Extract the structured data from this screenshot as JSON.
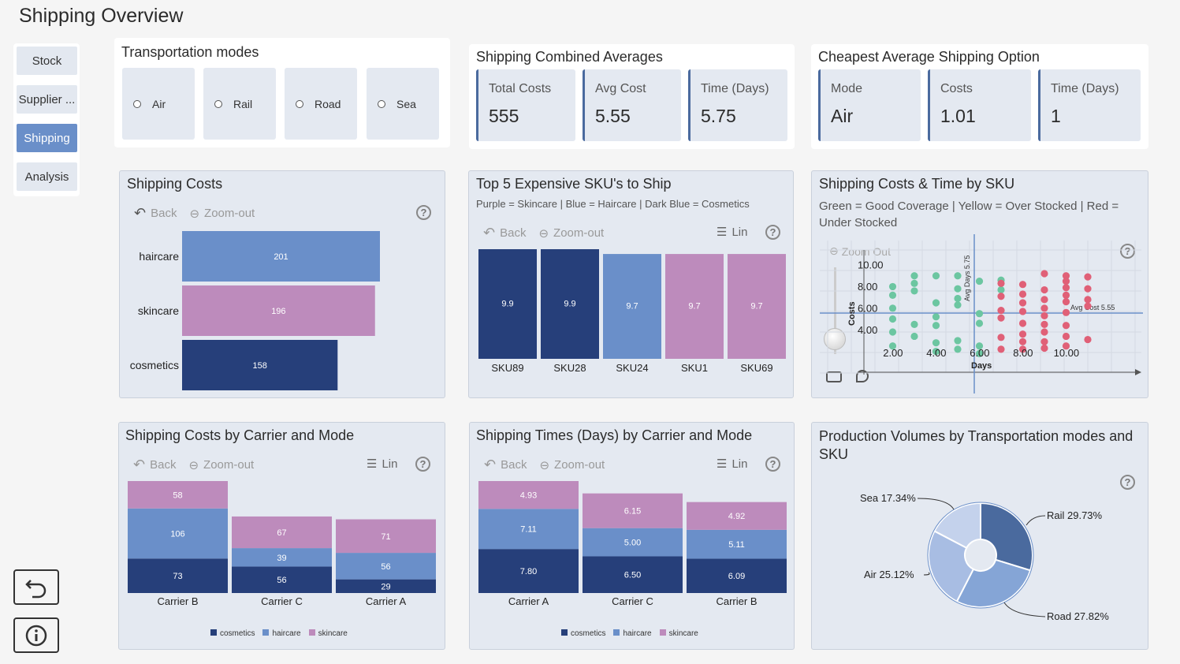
{
  "page_title": "Shipping Overview",
  "nav": {
    "items": [
      {
        "label": "Stock",
        "active": false
      },
      {
        "label": "Supplier ...",
        "active": false
      },
      {
        "label": "Shipping",
        "active": true
      },
      {
        "label": "Analysis",
        "active": false
      }
    ]
  },
  "transport": {
    "title": "Transportation modes",
    "modes": [
      "Air",
      "Rail",
      "Road",
      "Sea"
    ]
  },
  "combined": {
    "title": "Shipping Combined Averages",
    "kpis": [
      {
        "label": "Total Costs",
        "value": "555"
      },
      {
        "label": "Avg Cost",
        "value": "5.55"
      },
      {
        "label": "Time (Days)",
        "value": "5.75"
      }
    ]
  },
  "cheapest": {
    "title": "Cheapest Average Shipping Option",
    "kpis": [
      {
        "label": "Mode",
        "value": "Air"
      },
      {
        "label": "Costs",
        "value": "1.01"
      },
      {
        "label": "Time (Days)",
        "value": "1"
      }
    ]
  },
  "toolbar": {
    "back": "Back",
    "zoom_out": "Zoom-out",
    "lin": "Lin",
    "zoom_out_scatter": "Zoom Out",
    "help": "?"
  },
  "colors": {
    "cosmetics": "#263f7a",
    "haircare": "#6a8fc9",
    "skincare": "#bd8bbc",
    "good": "#6cc6a1",
    "under": "#e06077"
  },
  "legend_labels": {
    "cosmetics": "cosmetics",
    "haircare": "haircare",
    "skincare": "skincare"
  },
  "chart_data": [
    {
      "id": "shipping_costs",
      "type": "bar",
      "orientation": "horizontal",
      "title": "Shipping Costs",
      "categories": [
        "haircare",
        "skincare",
        "cosmetics"
      ],
      "values": [
        201,
        196,
        158
      ]
    },
    {
      "id": "top5",
      "type": "bar",
      "title": "Top 5 Expensive SKU's to Ship",
      "subtitle": "Purple = Skincare |  Blue = Haircare | Dark Blue = Cosmetics",
      "categories": [
        "SKU89",
        "SKU28",
        "SKU24",
        "SKU1",
        "SKU69"
      ],
      "values": [
        9.9,
        9.9,
        9.7,
        9.7,
        9.7
      ],
      "value_labels": [
        "9.9",
        "9.9",
        "9.7",
        "9.7",
        "9.7"
      ],
      "product_types": [
        "cosmetics",
        "cosmetics",
        "haircare",
        "skincare",
        "skincare"
      ]
    },
    {
      "id": "scatter",
      "type": "scatter",
      "title": "Shipping Costs & Time by SKU",
      "subtitle": "Green = Good Coverage | Yellow = Over Stocked | Red = Under Stocked",
      "xlabel": "Days",
      "ylabel": "Costs",
      "x_ticks": [
        "2.00",
        "4.00",
        "6.00",
        "8.00",
        "10.00"
      ],
      "y_ticks": [
        "4.00",
        "6.00",
        "8.00",
        "10.00"
      ],
      "ref_x_label": "Avg Days 5.75",
      "ref_y_label": "Avg Cost 5.55",
      "ref_x": 5.75,
      "ref_y": 5.55,
      "xlim": [
        -1,
        12
      ],
      "ylim": [
        1,
        11
      ],
      "green_points": [
        [
          1,
          8.0
        ],
        [
          1,
          7.2
        ],
        [
          1,
          6.0
        ],
        [
          1,
          5.0
        ],
        [
          1,
          3.8
        ],
        [
          1,
          2.5
        ],
        [
          2,
          9.0
        ],
        [
          2,
          8.3
        ],
        [
          2,
          7.6
        ],
        [
          2,
          4.5
        ],
        [
          2,
          3.4
        ],
        [
          3,
          9.0
        ],
        [
          3,
          6.5
        ],
        [
          3,
          5.2
        ],
        [
          3,
          4.4
        ],
        [
          3,
          2.8
        ],
        [
          3,
          2.0
        ],
        [
          4,
          9.0
        ],
        [
          4,
          7.8
        ],
        [
          4,
          6.9
        ],
        [
          4,
          6.3
        ],
        [
          4,
          3.0
        ],
        [
          4,
          2.2
        ],
        [
          5,
          8.5
        ],
        [
          5,
          5.5
        ],
        [
          5,
          4.6
        ],
        [
          5,
          2.5
        ],
        [
          5,
          1.8
        ],
        [
          6,
          8.6
        ],
        [
          6,
          7.7
        ]
      ],
      "red_points": [
        [
          6,
          8.3
        ],
        [
          6,
          7.1
        ],
        [
          6,
          5.8
        ],
        [
          6,
          5.1
        ],
        [
          6,
          3.3
        ],
        [
          6,
          2.2
        ],
        [
          7,
          8.2
        ],
        [
          7,
          7.3
        ],
        [
          7,
          6.5
        ],
        [
          7,
          5.7
        ],
        [
          7,
          4.6
        ],
        [
          7,
          3.6
        ],
        [
          7,
          2.9
        ],
        [
          7,
          2.2
        ],
        [
          8,
          9.2
        ],
        [
          8,
          7.7
        ],
        [
          8,
          6.8
        ],
        [
          8,
          6.0
        ],
        [
          8,
          5.3
        ],
        [
          8,
          4.5
        ],
        [
          8,
          3.8
        ],
        [
          8,
          2.9
        ],
        [
          8,
          2.3
        ],
        [
          9,
          9.0
        ],
        [
          9,
          8.5
        ],
        [
          9,
          7.9
        ],
        [
          9,
          7.2
        ],
        [
          9,
          6.6
        ],
        [
          9,
          5.6
        ],
        [
          9,
          4.4
        ],
        [
          9,
          3.4
        ],
        [
          9,
          2.5
        ],
        [
          10,
          8.9
        ],
        [
          10,
          7.8
        ],
        [
          10,
          6.8
        ],
        [
          10,
          6.2
        ],
        [
          10,
          3.1
        ]
      ]
    },
    {
      "id": "costs_carrier",
      "type": "bar",
      "stacked": true,
      "title": "Shipping Costs by Carrier and Mode",
      "categories": [
        "Carrier B",
        "Carrier C",
        "Carrier A"
      ],
      "series": [
        {
          "name": "cosmetics",
          "values": [
            73,
            56,
            29
          ]
        },
        {
          "name": "haircare",
          "values": [
            106,
            39,
            56
          ]
        },
        {
          "name": "skincare",
          "values": [
            58,
            67,
            71
          ]
        }
      ]
    },
    {
      "id": "times_carrier",
      "type": "bar",
      "stacked": true,
      "title": "Shipping Times (Days) by Carrier and Mode",
      "categories": [
        "Carrier A",
        "Carrier C",
        "Carrier B"
      ],
      "series": [
        {
          "name": "cosmetics",
          "values": [
            7.8,
            6.5,
            6.09
          ],
          "labels": [
            "7.80",
            "6.50",
            "6.09"
          ]
        },
        {
          "name": "haircare",
          "values": [
            7.11,
            5.0,
            5.11
          ],
          "labels": [
            "7.11",
            "5.00",
            "5.11"
          ]
        },
        {
          "name": "skincare",
          "values": [
            4.93,
            6.15,
            4.92
          ],
          "labels": [
            "4.93",
            "6.15",
            "4.92"
          ]
        }
      ]
    },
    {
      "id": "production",
      "type": "pie",
      "donut": true,
      "title": "Production Volumes by Transportation modes and SKU",
      "slices": [
        {
          "name": "Rail",
          "value": 29.73,
          "label": "Rail 29.73%",
          "color": "#4a6a9e"
        },
        {
          "name": "Road",
          "value": 27.82,
          "label": "Road 27.82%",
          "color": "#85a5d6"
        },
        {
          "name": "Air",
          "value": 25.12,
          "label": "Air 25.12%",
          "color": "#a8bde3"
        },
        {
          "name": "Sea",
          "value": 17.34,
          "label": "Sea 17.34%",
          "color": "#c4d2ec"
        }
      ]
    }
  ]
}
